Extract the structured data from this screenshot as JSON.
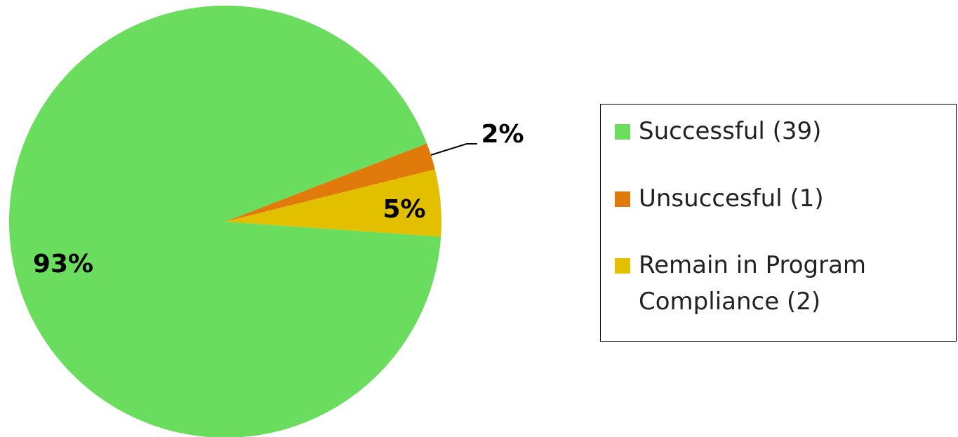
{
  "chart_data": {
    "type": "pie",
    "categories": [
      "Successful (39)",
      "Unsuccesful (1)",
      "Remain in Program Compliance (2)"
    ],
    "values": [
      93,
      2,
      5
    ],
    "value_labels": [
      "93%",
      "2%",
      "5%"
    ],
    "colors": [
      "#6adc5e",
      "#e07b0b",
      "#e2c000"
    ],
    "legend": "right"
  }
}
